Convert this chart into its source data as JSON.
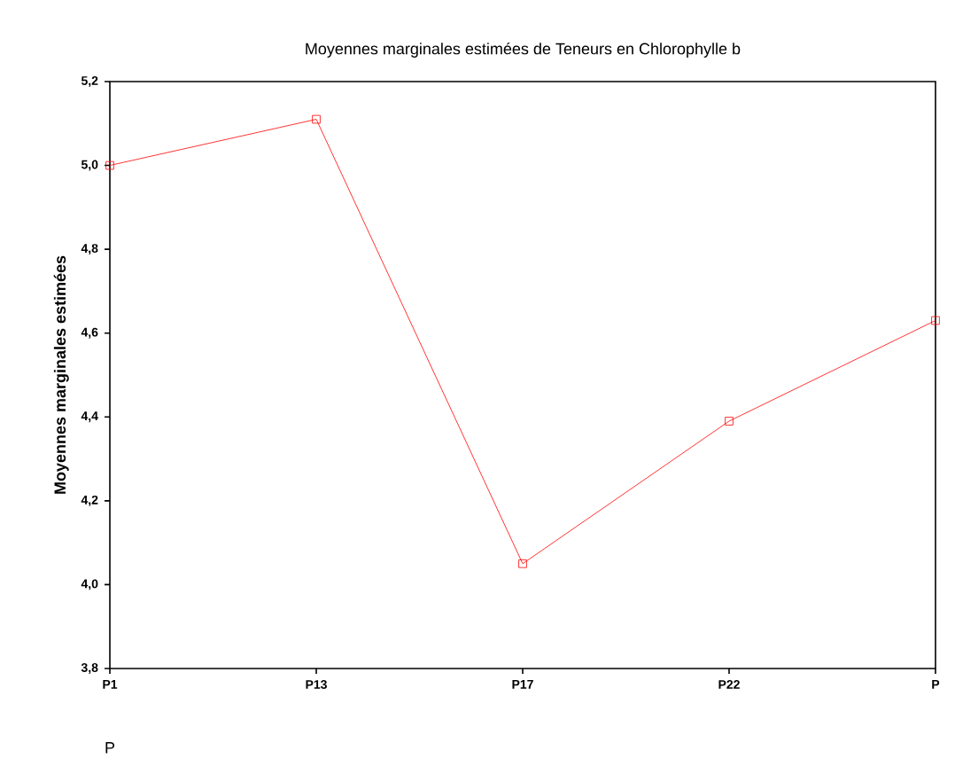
{
  "chart_data": {
    "type": "line",
    "title": "Moyennes marginales estimées de Teneurs en Chlorophylle b",
    "xlabel": "P",
    "ylabel": "Moyennes marginales estimées",
    "categories": [
      "P1",
      "P13",
      "P17",
      "P22",
      "P"
    ],
    "series": [
      {
        "color": "#ff0000",
        "values": [
          5.0,
          5.11,
          4.05,
          4.39,
          4.63
        ]
      }
    ],
    "ylim": [
      3.8,
      5.2
    ],
    "yticks": [
      {
        "value": 3.8,
        "label": "3,8"
      },
      {
        "value": 4.0,
        "label": "4,0"
      },
      {
        "value": 4.2,
        "label": "4,2"
      },
      {
        "value": 4.4,
        "label": "4,4"
      },
      {
        "value": 4.6,
        "label": "4,6"
      },
      {
        "value": 4.8,
        "label": "4,8"
      },
      {
        "value": 5.0,
        "label": "5,0"
      },
      {
        "value": 5.2,
        "label": "5,2"
      }
    ],
    "grid": false,
    "marker": "square",
    "line_style": "solid"
  }
}
